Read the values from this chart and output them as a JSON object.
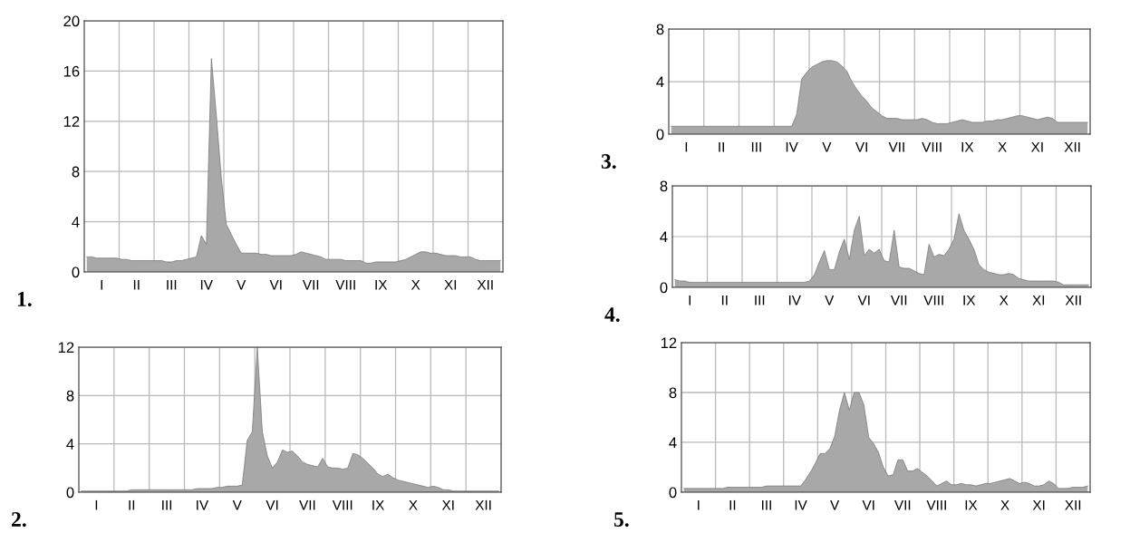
{
  "chart_data": [
    {
      "type": "area",
      "title": "1.",
      "color": "#a8a8a8",
      "grid": true,
      "ylim": [
        0,
        20
      ],
      "yticks": [
        0,
        4,
        8,
        12,
        16,
        20
      ],
      "categories": [
        null,
        null,
        null,
        "I",
        null,
        null,
        null,
        null,
        null,
        null,
        "II",
        null,
        null,
        null,
        null,
        null,
        null,
        "III",
        null,
        null,
        null,
        null,
        null,
        null,
        "IV",
        null,
        null,
        null,
        null,
        null,
        null,
        "V",
        null,
        null,
        null,
        null,
        null,
        null,
        "VI",
        null,
        null,
        null,
        null,
        null,
        null,
        "VII",
        null,
        null,
        null,
        null,
        null,
        null,
        "VIII",
        null,
        null,
        null,
        null,
        null,
        null,
        "IX",
        null,
        null,
        null,
        null,
        null,
        null,
        "X",
        null,
        null,
        null,
        null,
        null,
        null,
        "XI",
        null,
        null,
        null,
        null,
        null,
        null,
        "XII",
        null,
        null,
        null
      ],
      "values": [
        1.2,
        1.2,
        1.1,
        1.1,
        1.1,
        1.1,
        1.1,
        1.0,
        1.0,
        0.9,
        0.9,
        0.9,
        0.9,
        0.9,
        0.9,
        0.9,
        0.8,
        0.8,
        0.9,
        0.9,
        1.0,
        1.1,
        1.2,
        2.9,
        2.2,
        17.0,
        12.5,
        7.5,
        3.8,
        3.0,
        2.2,
        1.5,
        1.5,
        1.5,
        1.5,
        1.4,
        1.4,
        1.3,
        1.3,
        1.3,
        1.3,
        1.3,
        1.4,
        1.6,
        1.5,
        1.4,
        1.3,
        1.2,
        1.0,
        1.0,
        1.0,
        1.0,
        0.9,
        0.9,
        0.9,
        0.9,
        0.7,
        0.7,
        0.8,
        0.8,
        0.8,
        0.8,
        0.8,
        0.9,
        1.0,
        1.2,
        1.4,
        1.6,
        1.6,
        1.5,
        1.5,
        1.4,
        1.3,
        1.3,
        1.3,
        1.2,
        1.2,
        1.2,
        1.0,
        0.9,
        0.9,
        0.9,
        0.9,
        0.9
      ]
    },
    {
      "type": "area",
      "title": "2.",
      "color": "#a8a8a8",
      "grid": true,
      "ylim": [
        0,
        12
      ],
      "yticks": [
        0,
        4,
        8,
        12
      ],
      "categories": [
        null,
        null,
        null,
        "I",
        null,
        null,
        null,
        null,
        null,
        null,
        "II",
        null,
        null,
        null,
        null,
        null,
        null,
        "III",
        null,
        null,
        null,
        null,
        null,
        null,
        "IV",
        null,
        null,
        null,
        null,
        null,
        null,
        "V",
        null,
        null,
        null,
        null,
        null,
        null,
        "VI",
        null,
        null,
        null,
        null,
        null,
        null,
        "VII",
        null,
        null,
        null,
        null,
        null,
        null,
        "VIII",
        null,
        null,
        null,
        null,
        null,
        null,
        "IX",
        null,
        null,
        null,
        null,
        null,
        null,
        "X",
        null,
        null,
        null,
        null,
        null,
        null,
        "XI",
        null,
        null,
        null,
        null,
        null,
        null,
        "XII",
        null,
        null,
        null
      ],
      "values": [
        0.1,
        0.1,
        0.1,
        0.1,
        0.1,
        0.1,
        0.1,
        0.1,
        0.1,
        0.1,
        0.2,
        0.2,
        0.2,
        0.2,
        0.2,
        0.2,
        0.2,
        0.2,
        0.2,
        0.2,
        0.2,
        0.2,
        0.2,
        0.3,
        0.3,
        0.3,
        0.3,
        0.4,
        0.4,
        0.5,
        0.5,
        0.5,
        0.6,
        4.3,
        5.0,
        12.0,
        5.0,
        3.0,
        2.0,
        2.5,
        3.5,
        3.3,
        3.4,
        3.0,
        2.5,
        2.3,
        2.2,
        2.1,
        2.8,
        2.1,
        2.0,
        2.0,
        1.9,
        2.0,
        3.2,
        3.1,
        2.8,
        2.4,
        2.0,
        1.5,
        1.3,
        1.5,
        1.2,
        1.0,
        0.9,
        0.8,
        0.7,
        0.6,
        0.5,
        0.4,
        0.5,
        0.4,
        0.2,
        0.2,
        0.1,
        0.1,
        0.1,
        0.1,
        0.1,
        0.1,
        0.1,
        0.1,
        0.1,
        0.1
      ]
    },
    {
      "type": "area",
      "title": "3.",
      "color": "#a8a8a8",
      "grid": true,
      "ylim": [
        0,
        8
      ],
      "yticks": [
        0,
        4,
        8
      ],
      "categories": [
        null,
        null,
        null,
        "I",
        null,
        null,
        null,
        null,
        null,
        null,
        "II",
        null,
        null,
        null,
        null,
        null,
        null,
        "III",
        null,
        null,
        null,
        null,
        null,
        null,
        "IV",
        null,
        null,
        null,
        null,
        null,
        null,
        "V",
        null,
        null,
        null,
        null,
        null,
        null,
        "VI",
        null,
        null,
        null,
        null,
        null,
        null,
        "VII",
        null,
        null,
        null,
        null,
        null,
        null,
        "VIII",
        null,
        null,
        null,
        null,
        null,
        null,
        "IX",
        null,
        null,
        null,
        null,
        null,
        null,
        "X",
        null,
        null,
        null,
        null,
        null,
        null,
        "XI",
        null,
        null,
        null,
        null,
        null,
        null,
        "XII",
        null,
        null,
        null
      ],
      "values": [
        0.6,
        0.6,
        0.6,
        0.6,
        0.6,
        0.6,
        0.6,
        0.6,
        0.6,
        0.6,
        0.6,
        0.6,
        0.6,
        0.6,
        0.6,
        0.6,
        0.6,
        0.6,
        0.6,
        0.6,
        0.6,
        0.6,
        0.6,
        0.6,
        0.6,
        1.5,
        4.2,
        4.7,
        5.1,
        5.3,
        5.5,
        5.6,
        5.6,
        5.5,
        5.2,
        4.8,
        4.0,
        3.4,
        2.9,
        2.5,
        2.0,
        1.7,
        1.4,
        1.2,
        1.2,
        1.2,
        1.1,
        1.1,
        1.1,
        1.1,
        1.2,
        1.1,
        0.9,
        0.8,
        0.8,
        0.8,
        0.9,
        1.0,
        1.1,
        1.0,
        0.9,
        0.9,
        0.9,
        1.0,
        1.0,
        1.1,
        1.1,
        1.2,
        1.3,
        1.4,
        1.4,
        1.3,
        1.2,
        1.1,
        1.2,
        1.3,
        1.2,
        0.9,
        0.9,
        0.9,
        0.9,
        0.9,
        0.9,
        0.9
      ]
    },
    {
      "type": "area",
      "title": "4.",
      "color": "#a8a8a8",
      "grid": true,
      "ylim": [
        0,
        8
      ],
      "yticks": [
        0,
        4,
        8
      ],
      "categories": [
        null,
        null,
        null,
        "I",
        null,
        null,
        null,
        null,
        null,
        null,
        "II",
        null,
        null,
        null,
        null,
        null,
        null,
        "III",
        null,
        null,
        null,
        null,
        null,
        null,
        "IV",
        null,
        null,
        null,
        null,
        null,
        null,
        "V",
        null,
        null,
        null,
        null,
        null,
        null,
        "VI",
        null,
        null,
        null,
        null,
        null,
        null,
        "VII",
        null,
        null,
        null,
        null,
        null,
        null,
        "VIII",
        null,
        null,
        null,
        null,
        null,
        null,
        "IX",
        null,
        null,
        null,
        null,
        null,
        null,
        "X",
        null,
        null,
        null,
        null,
        null,
        null,
        "XI",
        null,
        null,
        null,
        null,
        null,
        null,
        "XII",
        null,
        null,
        null
      ],
      "values": [
        0.6,
        0.5,
        0.5,
        0.4,
        0.4,
        0.4,
        0.4,
        0.4,
        0.4,
        0.4,
        0.4,
        0.4,
        0.4,
        0.4,
        0.4,
        0.4,
        0.4,
        0.4,
        0.4,
        0.4,
        0.4,
        0.4,
        0.4,
        0.4,
        0.4,
        0.4,
        0.4,
        0.5,
        1.0,
        2.0,
        2.9,
        1.4,
        1.4,
        2.8,
        3.8,
        2.2,
        4.5,
        5.6,
        2.5,
        3.0,
        2.7,
        3.0,
        2.1,
        2.0,
        4.5,
        1.6,
        1.5,
        1.5,
        1.3,
        1.1,
        1.0,
        3.4,
        2.4,
        2.6,
        2.5,
        3.0,
        3.8,
        5.8,
        4.5,
        3.8,
        3.0,
        1.8,
        1.4,
        1.2,
        1.1,
        1.0,
        1.0,
        1.1,
        1.0,
        0.7,
        0.6,
        0.5,
        0.5,
        0.5,
        0.5,
        0.5,
        0.5,
        0.4,
        0.2,
        0.2,
        0.2,
        0.2,
        0.2,
        0.2
      ]
    },
    {
      "type": "area",
      "title": "5.",
      "color": "#a8a8a8",
      "grid": true,
      "ylim": [
        0,
        12
      ],
      "yticks": [
        0,
        4,
        8,
        12
      ],
      "categories": [
        null,
        null,
        null,
        "I",
        null,
        null,
        null,
        null,
        null,
        null,
        "II",
        null,
        null,
        null,
        null,
        null,
        null,
        "III",
        null,
        null,
        null,
        null,
        null,
        null,
        "IV",
        null,
        null,
        null,
        null,
        null,
        null,
        "V",
        null,
        null,
        null,
        null,
        null,
        null,
        "VI",
        null,
        null,
        null,
        null,
        null,
        null,
        "VII",
        null,
        null,
        null,
        null,
        null,
        null,
        "VIII",
        null,
        null,
        null,
        null,
        null,
        null,
        "IX",
        null,
        null,
        null,
        null,
        null,
        null,
        "X",
        null,
        null,
        null,
        null,
        null,
        null,
        "XI",
        null,
        null,
        null,
        null,
        null,
        null,
        "XII",
        null,
        null,
        null
      ],
      "values": [
        0.3,
        0.3,
        0.3,
        0.3,
        0.3,
        0.3,
        0.3,
        0.3,
        0.3,
        0.4,
        0.4,
        0.4,
        0.4,
        0.4,
        0.4,
        0.4,
        0.4,
        0.5,
        0.5,
        0.5,
        0.5,
        0.5,
        0.5,
        0.5,
        0.5,
        1.0,
        1.6,
        2.3,
        3.1,
        3.1,
        3.5,
        4.5,
        6.6,
        8.0,
        6.6,
        8.0,
        8.0,
        7.0,
        4.4,
        3.9,
        3.2,
        2.0,
        1.3,
        1.4,
        2.6,
        2.6,
        1.7,
        1.7,
        1.9,
        1.6,
        1.3,
        0.9,
        0.5,
        0.7,
        0.9,
        0.6,
        0.6,
        0.7,
        0.6,
        0.6,
        0.5,
        0.6,
        0.7,
        0.7,
        0.8,
        0.9,
        1.0,
        1.1,
        0.9,
        0.7,
        0.8,
        0.7,
        0.5,
        0.5,
        0.6,
        0.9,
        0.7,
        0.3,
        0.3,
        0.3,
        0.4,
        0.4,
        0.4,
        0.5
      ]
    }
  ]
}
